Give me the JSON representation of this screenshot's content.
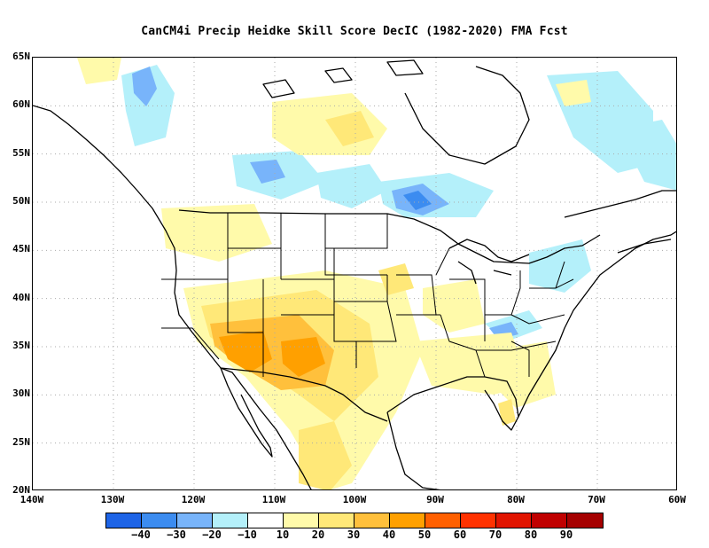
{
  "title": "CanCM4i Precip Heidke Skill Score DecIC (1982-2020) FMA Fcst",
  "lat_labels": [
    "65N",
    "60N",
    "55N",
    "50N",
    "45N",
    "40N",
    "35N",
    "30N",
    "25N",
    "20N"
  ],
  "lon_labels": [
    "140W",
    "130W",
    "120W",
    "110W",
    "100W",
    "90W",
    "80W",
    "70W",
    "60W"
  ],
  "colorbar": {
    "labels": [
      "-40",
      "-30",
      "-20",
      "-10",
      "10",
      "20",
      "30",
      "40",
      "50",
      "60",
      "70",
      "80",
      "90"
    ],
    "colors": [
      "#1e64e6",
      "#3c8cf0",
      "#78b4fa",
      "#b4f0fa",
      "#ffffff",
      "#fffaaa",
      "#ffe878",
      "#ffc03c",
      "#ffa000",
      "#ff6000",
      "#ff3200",
      "#e11400",
      "#c00000",
      "#a50000"
    ]
  },
  "map_extent": {
    "lon_min": -140,
    "lon_max": -60,
    "lat_min": 20,
    "lat_max": 65
  },
  "colors": {
    "frame": "#000000",
    "coast": "#000000",
    "grid": "#aaaaaa"
  }
}
